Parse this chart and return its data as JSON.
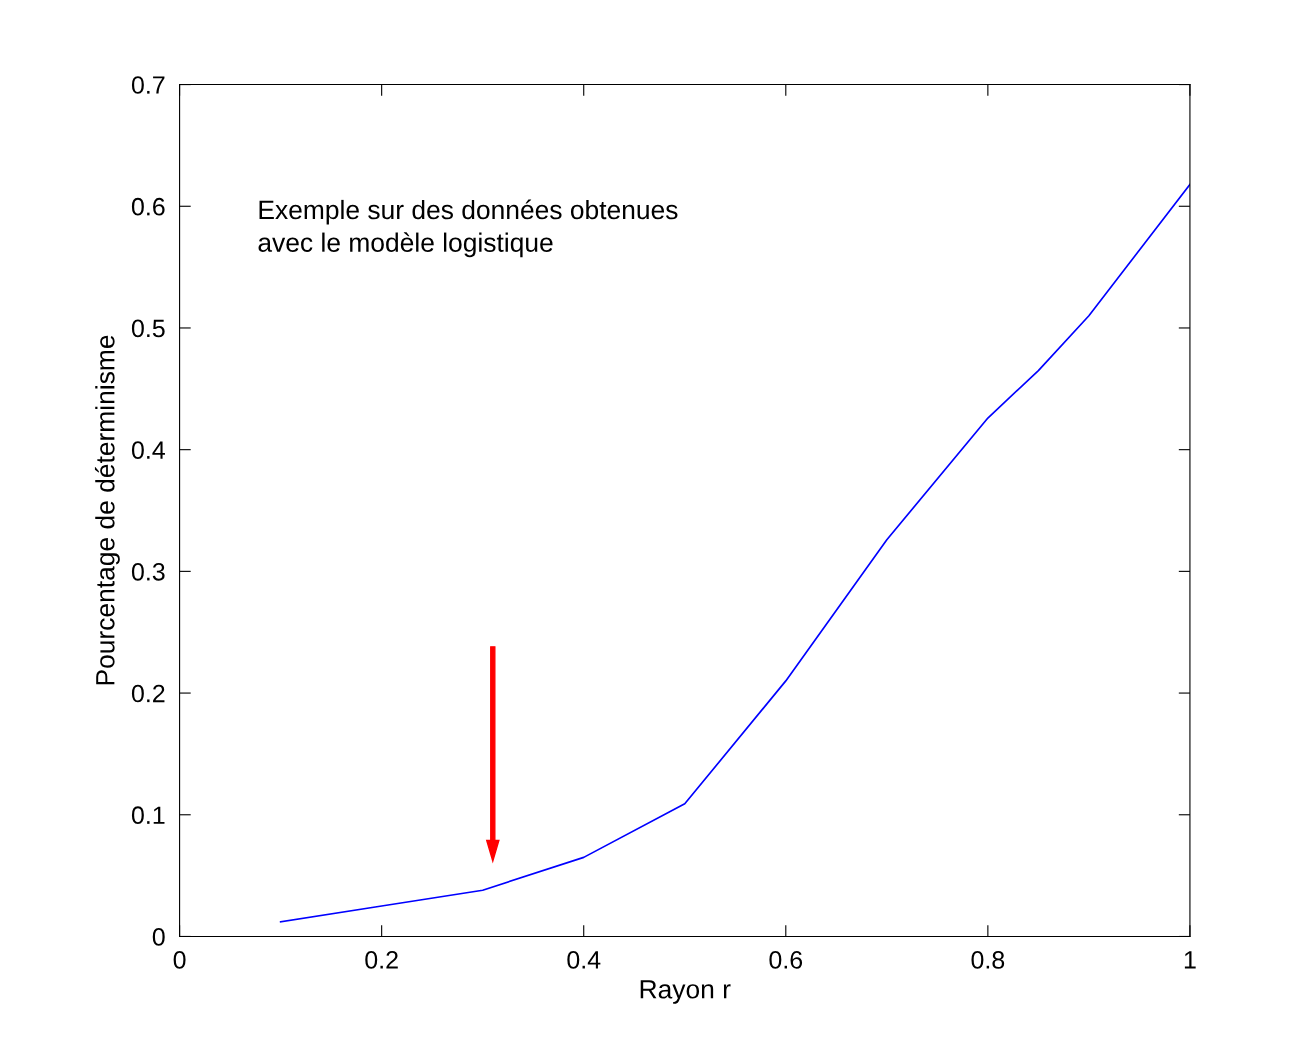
{
  "chart_data": {
    "type": "line",
    "xlabel": "Rayon r",
    "ylabel": "Pourcentage de déterminisme",
    "annotations": [
      "Exemple sur des données obtenues\navec le modèle logistique"
    ],
    "series": [
      {
        "color": "#0000ff",
        "x": [
          0.1,
          0.2,
          0.3,
          0.4,
          0.5,
          0.6,
          0.7,
          0.8,
          0.85,
          0.9,
          1.0
        ],
        "values": [
          0.012,
          0.025,
          0.038,
          0.065,
          0.109,
          0.21,
          0.326,
          0.426,
          0.465,
          0.51,
          0.618
        ]
      }
    ],
    "xlim": [
      0,
      1
    ],
    "xticks": [
      0,
      0.2,
      0.4,
      0.6,
      0.8,
      1
    ],
    "ylim": [
      0,
      0.7
    ],
    "yticks": [
      0,
      0.1,
      0.2,
      0.3,
      0.4,
      0.5,
      0.6,
      0.7
    ],
    "grid": false,
    "legend": false,
    "line_style": "solid"
  }
}
